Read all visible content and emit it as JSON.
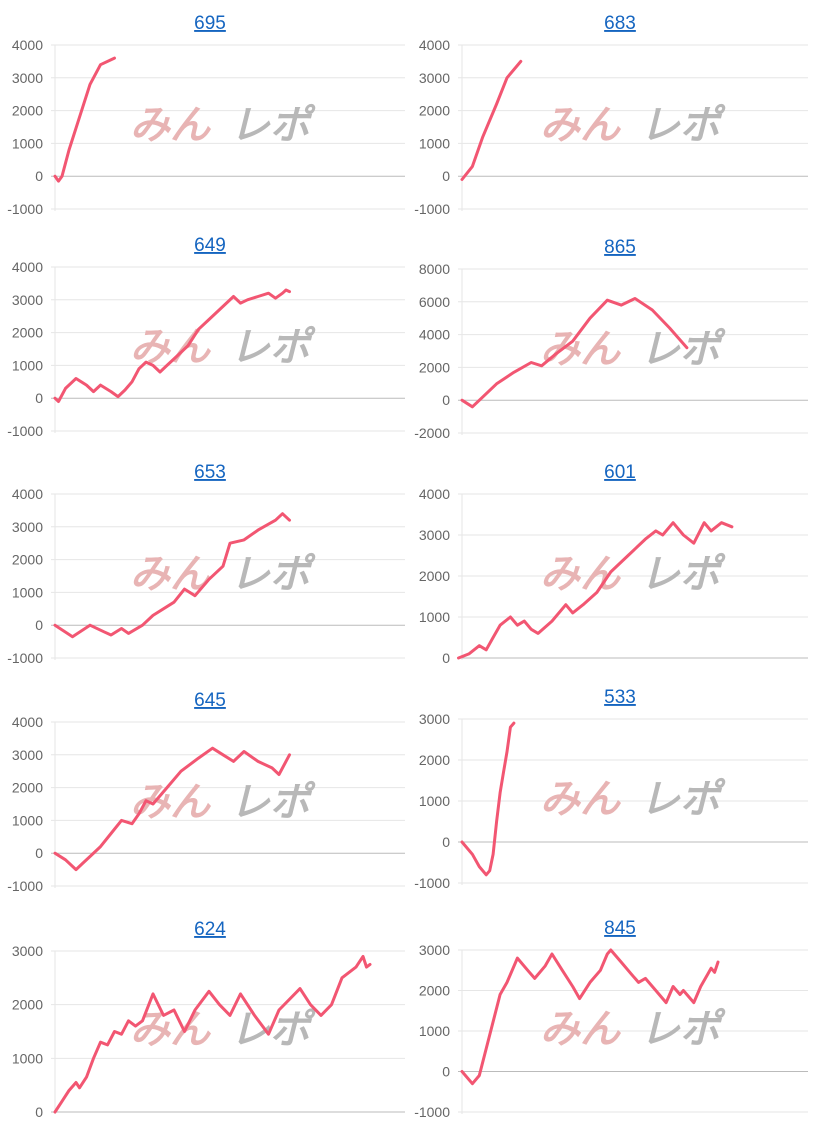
{
  "watermark": {
    "part1": "みん",
    "part2": "レポ"
  },
  "colors": {
    "line": "#f25672",
    "title_link": "#1565c0",
    "grid": "#e6e6e6",
    "zero_line": "#bbbbbb",
    "tick_text": "#666666"
  },
  "chart_data": [
    {
      "type": "line",
      "title": "695",
      "ylim": [
        -1000,
        4000
      ],
      "yticks": [
        4000,
        3000,
        2000,
        1000,
        0,
        -1000
      ],
      "xlim": [
        0,
        100
      ],
      "grid": true,
      "points": [
        [
          0,
          0
        ],
        [
          1,
          -150
        ],
        [
          2,
          0
        ],
        [
          4,
          800
        ],
        [
          7,
          1800
        ],
        [
          10,
          2800
        ],
        [
          13,
          3400
        ],
        [
          17,
          3600
        ]
      ]
    },
    {
      "type": "line",
      "title": "683",
      "ylim": [
        -1000,
        4000
      ],
      "yticks": [
        4000,
        3000,
        2000,
        1000,
        0,
        -1000
      ],
      "xlim": [
        0,
        100
      ],
      "grid": true,
      "points": [
        [
          0,
          -100
        ],
        [
          3,
          300
        ],
        [
          6,
          1200
        ],
        [
          10,
          2200
        ],
        [
          13,
          3000
        ],
        [
          17,
          3500
        ]
      ]
    },
    {
      "type": "line",
      "title": "649",
      "ylim": [
        -1000,
        4000
      ],
      "yticks": [
        4000,
        3000,
        2000,
        1000,
        0,
        -1000
      ],
      "xlim": [
        0,
        100
      ],
      "grid": true,
      "points": [
        [
          0,
          0
        ],
        [
          1,
          -100
        ],
        [
          3,
          300
        ],
        [
          6,
          600
        ],
        [
          9,
          400
        ],
        [
          11,
          200
        ],
        [
          13,
          400
        ],
        [
          16,
          200
        ],
        [
          18,
          50
        ],
        [
          20,
          250
        ],
        [
          22,
          500
        ],
        [
          24,
          900
        ],
        [
          26,
          1100
        ],
        [
          28,
          1000
        ],
        [
          30,
          800
        ],
        [
          32,
          1000
        ],
        [
          35,
          1300
        ],
        [
          38,
          1600
        ],
        [
          41,
          2100
        ],
        [
          44,
          2400
        ],
        [
          48,
          2800
        ],
        [
          51,
          3100
        ],
        [
          53,
          2900
        ],
        [
          55,
          3000
        ],
        [
          58,
          3100
        ],
        [
          61,
          3200
        ],
        [
          63,
          3050
        ],
        [
          65,
          3200
        ],
        [
          66,
          3300
        ],
        [
          67,
          3250
        ]
      ]
    },
    {
      "type": "line",
      "title": "865",
      "ylim": [
        -2000,
        8000
      ],
      "yticks": [
        8000,
        6000,
        4000,
        2000,
        0,
        -2000
      ],
      "xlim": [
        0,
        100
      ],
      "grid": true,
      "points": [
        [
          0,
          0
        ],
        [
          3,
          -400
        ],
        [
          6,
          200
        ],
        [
          10,
          1000
        ],
        [
          15,
          1700
        ],
        [
          20,
          2300
        ],
        [
          23,
          2100
        ],
        [
          27,
          2800
        ],
        [
          32,
          3600
        ],
        [
          37,
          5000
        ],
        [
          42,
          6100
        ],
        [
          46,
          5800
        ],
        [
          50,
          6200
        ],
        [
          55,
          5500
        ],
        [
          60,
          4400
        ],
        [
          65,
          3200
        ]
      ]
    },
    {
      "type": "line",
      "title": "653",
      "ylim": [
        -1000,
        4000
      ],
      "yticks": [
        4000,
        3000,
        2000,
        1000,
        0,
        -1000
      ],
      "xlim": [
        0,
        100
      ],
      "grid": true,
      "points": [
        [
          0,
          0
        ],
        [
          5,
          -350
        ],
        [
          10,
          0
        ],
        [
          14,
          -200
        ],
        [
          16,
          -300
        ],
        [
          19,
          -100
        ],
        [
          21,
          -250
        ],
        [
          25,
          0
        ],
        [
          28,
          300
        ],
        [
          34,
          700
        ],
        [
          37,
          1100
        ],
        [
          40,
          900
        ],
        [
          44,
          1400
        ],
        [
          48,
          1800
        ],
        [
          50,
          2500
        ],
        [
          54,
          2600
        ],
        [
          58,
          2900
        ],
        [
          63,
          3200
        ],
        [
          65,
          3400
        ],
        [
          67,
          3200
        ]
      ]
    },
    {
      "type": "line",
      "title": "601",
      "ylim": [
        0,
        4000
      ],
      "yticks": [
        4000,
        3000,
        2000,
        1000,
        0
      ],
      "xlim": [
        0,
        100
      ],
      "grid": true,
      "points": [
        [
          -1,
          0
        ],
        [
          2,
          100
        ],
        [
          5,
          300
        ],
        [
          7,
          200
        ],
        [
          9,
          500
        ],
        [
          11,
          800
        ],
        [
          14,
          1000
        ],
        [
          16,
          800
        ],
        [
          18,
          900
        ],
        [
          20,
          700
        ],
        [
          22,
          600
        ],
        [
          26,
          900
        ],
        [
          30,
          1300
        ],
        [
          32,
          1100
        ],
        [
          35,
          1300
        ],
        [
          39,
          1600
        ],
        [
          43,
          2100
        ],
        [
          48,
          2500
        ],
        [
          53,
          2900
        ],
        [
          56,
          3100
        ],
        [
          58,
          3000
        ],
        [
          61,
          3300
        ],
        [
          64,
          3000
        ],
        [
          67,
          2800
        ],
        [
          70,
          3300
        ],
        [
          72,
          3100
        ],
        [
          75,
          3300
        ],
        [
          78,
          3200
        ]
      ]
    },
    {
      "type": "line",
      "title": "645",
      "ylim": [
        -1000,
        4000
      ],
      "yticks": [
        4000,
        3000,
        2000,
        1000,
        0,
        -1000
      ],
      "xlim": [
        0,
        100
      ],
      "grid": true,
      "points": [
        [
          0,
          0
        ],
        [
          3,
          -200
        ],
        [
          6,
          -500
        ],
        [
          8,
          -300
        ],
        [
          10,
          -100
        ],
        [
          13,
          200
        ],
        [
          16,
          600
        ],
        [
          19,
          1000
        ],
        [
          22,
          900
        ],
        [
          24,
          1200
        ],
        [
          26,
          1600
        ],
        [
          28,
          1500
        ],
        [
          32,
          2000
        ],
        [
          36,
          2500
        ],
        [
          41,
          2900
        ],
        [
          45,
          3200
        ],
        [
          48,
          3000
        ],
        [
          51,
          2800
        ],
        [
          54,
          3100
        ],
        [
          58,
          2800
        ],
        [
          62,
          2600
        ],
        [
          64,
          2400
        ],
        [
          67,
          3000
        ]
      ]
    },
    {
      "type": "line",
      "title": "533",
      "ylim": [
        -1000,
        3000
      ],
      "yticks": [
        3000,
        2000,
        1000,
        0,
        -1000
      ],
      "xlim": [
        0,
        100
      ],
      "grid": true,
      "points": [
        [
          0,
          0
        ],
        [
          3,
          -300
        ],
        [
          5,
          -600
        ],
        [
          7,
          -800
        ],
        [
          8,
          -700
        ],
        [
          9,
          -300
        ],
        [
          10,
          500
        ],
        [
          11,
          1200
        ],
        [
          12,
          1700
        ],
        [
          13,
          2200
        ],
        [
          14,
          2800
        ],
        [
          15,
          2900
        ]
      ]
    },
    {
      "type": "line",
      "title": "624",
      "ylim": [
        0,
        3000
      ],
      "yticks": [
        3000,
        2000,
        1000,
        0
      ],
      "xlim": [
        0,
        100
      ],
      "grid": true,
      "points": [
        [
          0,
          0
        ],
        [
          2,
          200
        ],
        [
          4,
          400
        ],
        [
          6,
          550
        ],
        [
          7,
          450
        ],
        [
          9,
          650
        ],
        [
          11,
          1000
        ],
        [
          13,
          1300
        ],
        [
          15,
          1250
        ],
        [
          17,
          1500
        ],
        [
          19,
          1450
        ],
        [
          21,
          1700
        ],
        [
          23,
          1600
        ],
        [
          25,
          1700
        ],
        [
          28,
          2200
        ],
        [
          31,
          1800
        ],
        [
          34,
          1900
        ],
        [
          37,
          1500
        ],
        [
          40,
          1900
        ],
        [
          44,
          2250
        ],
        [
          47,
          2000
        ],
        [
          50,
          1800
        ],
        [
          53,
          2200
        ],
        [
          57,
          1800
        ],
        [
          61,
          1450
        ],
        [
          64,
          1900
        ],
        [
          70,
          2300
        ],
        [
          73,
          2000
        ],
        [
          76,
          1800
        ],
        [
          79,
          2000
        ],
        [
          82,
          2500
        ],
        [
          86,
          2700
        ],
        [
          88,
          2900
        ],
        [
          89,
          2700
        ],
        [
          90,
          2750
        ]
      ]
    },
    {
      "type": "line",
      "title": "845",
      "ylim": [
        -1000,
        3000
      ],
      "yticks": [
        3000,
        2000,
        1000,
        0,
        -1000
      ],
      "xlim": [
        0,
        100
      ],
      "grid": true,
      "points": [
        [
          0,
          0
        ],
        [
          3,
          -300
        ],
        [
          5,
          -100
        ],
        [
          8,
          900
        ],
        [
          11,
          1900
        ],
        [
          13,
          2200
        ],
        [
          16,
          2800
        ],
        [
          19,
          2500
        ],
        [
          21,
          2300
        ],
        [
          24,
          2600
        ],
        [
          26,
          2900
        ],
        [
          29,
          2500
        ],
        [
          32,
          2100
        ],
        [
          34,
          1800
        ],
        [
          37,
          2200
        ],
        [
          40,
          2500
        ],
        [
          42,
          2900
        ],
        [
          43,
          3000
        ],
        [
          46,
          2700
        ],
        [
          49,
          2400
        ],
        [
          51,
          2200
        ],
        [
          53,
          2300
        ],
        [
          56,
          2000
        ],
        [
          59,
          1700
        ],
        [
          61,
          2100
        ],
        [
          63,
          1900
        ],
        [
          64,
          2000
        ],
        [
          67,
          1700
        ],
        [
          69,
          2100
        ],
        [
          71,
          2400
        ],
        [
          72,
          2550
        ],
        [
          73,
          2450
        ],
        [
          74,
          2700
        ]
      ]
    }
  ]
}
